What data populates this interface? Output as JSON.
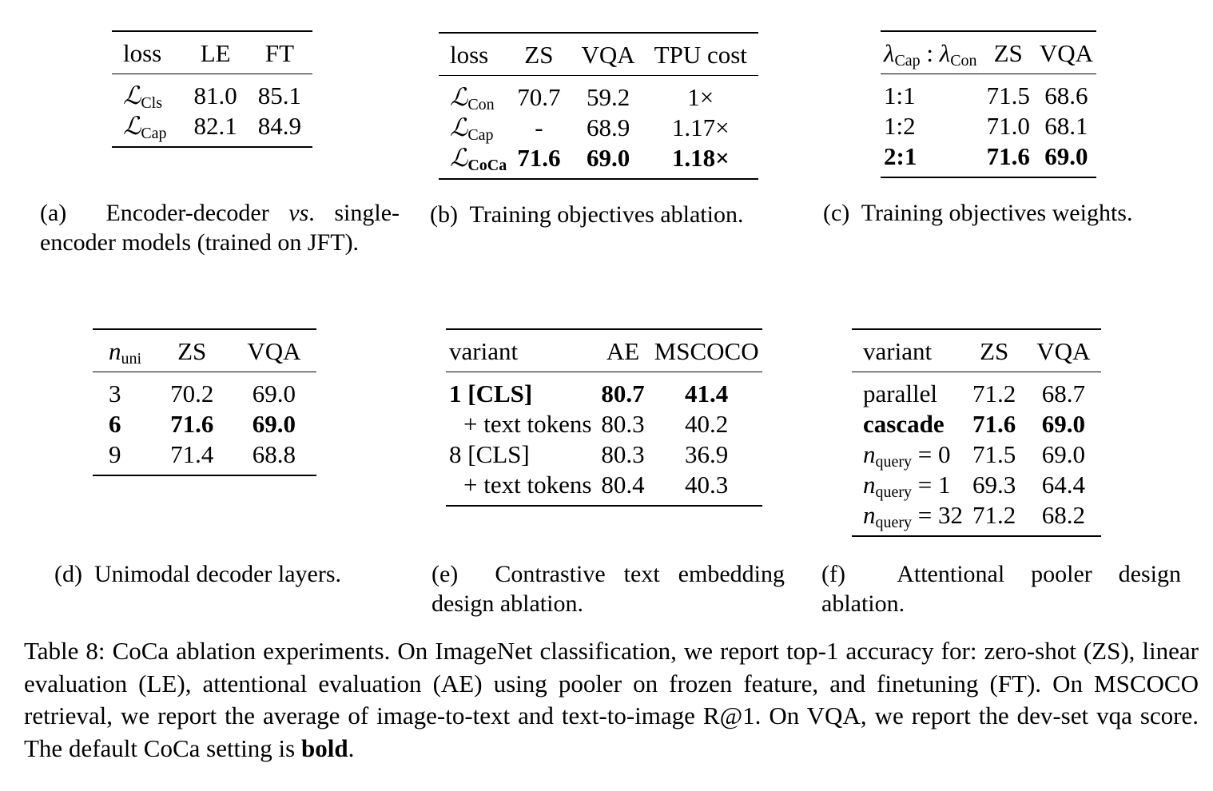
{
  "tables": {
    "a": {
      "headers": [
        "loss",
        "LE",
        "FT"
      ],
      "rows": [
        {
          "loss_symbol": "ℒ",
          "loss_sub": "Cls",
          "le": "81.0",
          "ft": "85.1"
        },
        {
          "loss_symbol": "ℒ",
          "loss_sub": "Cap",
          "le": "82.1",
          "ft": "84.9"
        }
      ],
      "caption_label": "(a)",
      "caption_text": "Encoder-decoder vs. single-encoder models (trained on JFT)."
    },
    "b": {
      "headers": [
        "loss",
        "ZS",
        "VQA",
        "TPU cost"
      ],
      "rows": [
        {
          "loss_symbol": "ℒ",
          "loss_sub": "Con",
          "zs": "70.7",
          "vqa": "59.2",
          "tpu": "1×"
        },
        {
          "loss_symbol": "ℒ",
          "loss_sub": "Cap",
          "zs": "-",
          "vqa": "68.9",
          "tpu": "1.17×"
        },
        {
          "loss_symbol": "ℒ",
          "loss_sub": "CoCa",
          "zs": "71.6",
          "vqa": "69.0",
          "tpu": "1.18×"
        }
      ],
      "caption_label": "(b)",
      "caption_text": "Training objectives ablation."
    },
    "c": {
      "header_lambda": "λ",
      "header_sub1": "Cap",
      "header_sep": " : ",
      "header_sub2": "Con",
      "headers": [
        "ZS",
        "VQA"
      ],
      "rows": [
        {
          "ratio": "1:1",
          "zs": "71.5",
          "vqa": "68.6"
        },
        {
          "ratio": "1:2",
          "zs": "71.0",
          "vqa": "68.1"
        },
        {
          "ratio": "2:1",
          "zs": "71.6",
          "vqa": "69.0"
        }
      ],
      "caption_label": "(c)",
      "caption_text": "Training objectives weights."
    },
    "d": {
      "header_n": "n",
      "header_sub": "uni",
      "headers": [
        "ZS",
        "VQA"
      ],
      "rows": [
        {
          "n": "3",
          "zs": "70.2",
          "vqa": "69.0"
        },
        {
          "n": "6",
          "zs": "71.6",
          "vqa": "69.0"
        },
        {
          "n": "9",
          "zs": "71.4",
          "vqa": "68.8"
        }
      ],
      "caption_label": "(d)",
      "caption_text": "Unimodal decoder layers."
    },
    "e": {
      "headers": [
        "variant",
        "AE",
        "MSCOCO"
      ],
      "rows": [
        {
          "variant": "1 [CLS]",
          "ae": "80.7",
          "mscoco": "41.4"
        },
        {
          "variant": "+ text tokens",
          "ae": "80.3",
          "mscoco": "40.2"
        },
        {
          "variant": "8 [CLS]",
          "ae": "80.3",
          "mscoco": "36.9"
        },
        {
          "variant": "+ text tokens",
          "ae": "80.4",
          "mscoco": "40.3"
        }
      ],
      "caption_label": "(e)",
      "caption_text": "Contrastive text embedding design ablation."
    },
    "f": {
      "headers": [
        "variant",
        "ZS",
        "VQA"
      ],
      "rows": [
        {
          "variant": "parallel",
          "zs": "71.2",
          "vqa": "68.7"
        },
        {
          "variant": "cascade",
          "zs": "71.6",
          "vqa": "69.0"
        },
        {
          "n": "n",
          "sub": "query",
          "eq": " = 0",
          "zs": "71.5",
          "vqa": "69.0"
        },
        {
          "n": "n",
          "sub": "query",
          "eq": " = 1",
          "zs": "69.3",
          "vqa": "64.4"
        },
        {
          "n": "n",
          "sub": "query",
          "eq": " = 32",
          "zs": "71.2",
          "vqa": "68.2"
        }
      ],
      "caption_label": "(f)",
      "caption_text": "Attentional pooler design ablation."
    }
  },
  "main_caption": {
    "prefix": "Table 8: CoCa ablation experiments. On ImageNet classification, we report top-1 accuracy for: zero-shot (ZS), linear evaluation (LE), attentional evaluation (AE) using pooler on frozen feature, and finetuning (FT). On MSCOCO retrieval, we report the average of image-to-text and text-to-image R@1. On VQA, we report the dev-set vqa score. The default CoCa setting is ",
    "bold": "bold",
    "suffix": "."
  }
}
